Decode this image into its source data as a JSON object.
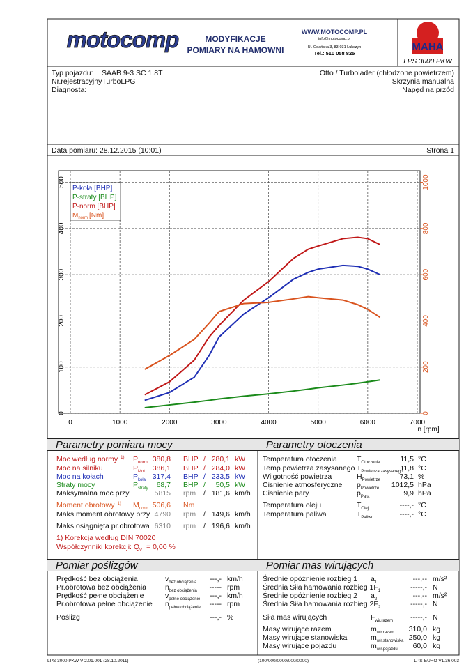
{
  "header": {
    "logo": "motocomp",
    "title_1": "MODYFIKACJE",
    "title_2": "POMIARY NA HAMOWNI",
    "web": "WWW.MOTOCOMP.PL",
    "email": "info@motocomp.pl",
    "address": "Ul. Gdańska 3, 83-031 Łukczyn",
    "phone": "Tel.: 510 058 825",
    "maha": "MAHA",
    "device": "LPS 3000 PKW"
  },
  "vehicle": {
    "type_label": "Typ pojazdu:",
    "type": "SAAB 9-3 SC 1.8T",
    "engine": "Otto / Turbolader (chłodzone powietrzem)",
    "reg": "Nr.rejestracyjnyTurboLPG",
    "gearbox": "Skrzynia manualna",
    "diag": "Diagnosta:",
    "drive": "Napęd na przód",
    "date": "Data pomiaru: 28.12.2015 (10:01)",
    "page": "Strona 1"
  },
  "chart_data": {
    "type": "line",
    "x_label": "n [rpm]",
    "x": [
      1500,
      2000,
      2500,
      2800,
      3000,
      3500,
      4000,
      4500,
      4800,
      5000,
      5500,
      5800,
      6000,
      6250
    ],
    "xlim": [
      0,
      7000
    ],
    "xticks": [
      0,
      1000,
      2000,
      3000,
      4000,
      5000,
      6000,
      7000
    ],
    "ylim": [
      0,
      525
    ],
    "yticks": [
      0,
      100,
      200,
      300,
      400,
      500
    ],
    "y2lim": [
      0,
      1050
    ],
    "y2ticks": [
      0,
      200,
      400,
      600,
      800,
      1000
    ],
    "grid": true,
    "legend": "top-left",
    "series": [
      {
        "name": "P-koła [BHP]",
        "color": "#1f2fb5",
        "values": [
          28,
          45,
          78,
          125,
          165,
          215,
          250,
          290,
          305,
          312,
          320,
          318,
          312,
          300
        ]
      },
      {
        "name": "P-straty [BHP]",
        "color": "#1a8a1a",
        "values": [
          12,
          18,
          24,
          28,
          31,
          37,
          42,
          48,
          52,
          55,
          61,
          65,
          68,
          72
        ]
      },
      {
        "name": "P-norm [BHP]",
        "color": "#c01818",
        "values": [
          40,
          68,
          115,
          165,
          190,
          245,
          285,
          335,
          355,
          362,
          378,
          381,
          378,
          365
        ]
      },
      {
        "name": "M",
        "name_sub": "norm",
        "unit": "[Nm]",
        "color": "#d9531e",
        "axis": "y2",
        "values": [
          190,
          250,
          320,
          390,
          440,
          475,
          480,
          495,
          505,
          500,
          490,
          470,
          450,
          415
        ]
      }
    ]
  },
  "power": {
    "title": "Parametry pomiaru mocy",
    "rows": [
      {
        "label": "Moc według normy",
        "note": "1)",
        "sym": "P",
        "sub": "norm",
        "v1": "380,8",
        "u1": "BHP",
        "sep": "/",
        "v2": "280,1",
        "u2": "kW"
      },
      {
        "label": "Moc na silniku",
        "sym": "P",
        "sub": "Mot",
        "v1": "386,1",
        "u1": "BHP",
        "sep": "/",
        "v2": "284,0",
        "u2": "kW"
      },
      {
        "label": "Moc na kołach",
        "sym": "P",
        "sub": "koła",
        "v1": "317,4",
        "u1": "BHP",
        "sep": "/",
        "v2": "233,5",
        "u2": "kW"
      },
      {
        "label": "Straty mocy",
        "sym": "P",
        "sub": "straty",
        "v1": "68,7",
        "u1": "BHP",
        "sep": "/",
        "v2": "50,5",
        "u2": "kW"
      },
      {
        "label": "Maksymalna moc przy",
        "v1": "5815",
        "u1": "rpm",
        "sep": "/",
        "v2": "181,6",
        "u2": "km/h"
      },
      {
        "label": "Moment obrotowy",
        "note": "1)",
        "sym": "M",
        "sub": "norm",
        "v1": "506,6",
        "u1": "Nm"
      },
      {
        "label": "Maks.moment obrotowy przy",
        "v1": "4790",
        "u1": "rpm",
        "sep": "/",
        "v2": "149,6",
        "u2": "km/h"
      },
      {
        "label": "Maks.osiągnięta pr.obrotowa",
        "v1": "6310",
        "u1": "rpm",
        "sep": "/",
        "v2": "196,6",
        "u2": "km/h"
      },
      {
        "label": "1) Korekcja według DIN 70020"
      },
      {
        "label": "Współczynniki korekcji: Q",
        "label_sub": "V",
        "tail": "= 0,00 %"
      }
    ]
  },
  "environment": {
    "title": "Parametry otoczenia",
    "rows": [
      {
        "label": "Temperatura otoczenia",
        "sym": "T",
        "sub": "Otoczenie",
        "val": "11,5",
        "unit": "°C"
      },
      {
        "label": "Temp.powietrza zasysanego",
        "sym": "T",
        "sub": "Powietrza zasysanego",
        "val": "11,8",
        "unit": "°C"
      },
      {
        "label": "Wilgotność powietrza",
        "sym": "H",
        "sub": "Powietrze",
        "val": "73,1",
        "unit": "%"
      },
      {
        "label": "Cisnienie atmosferyczne",
        "sym": "p",
        "sub": "Powietrze",
        "val": "1012,5",
        "unit": "hPa"
      },
      {
        "label": "Cisnienie pary",
        "sym": "p",
        "sub": "Para",
        "val": "9,9",
        "unit": "hPa"
      },
      {
        "label": "Temperatura oleju",
        "sym": "T",
        "sub": "Olej",
        "val": "----,-",
        "unit": "°C"
      },
      {
        "label": "Temperatura paliwa",
        "sym": "T",
        "sub": "Paliwo",
        "val": "----,-",
        "unit": "°C"
      }
    ]
  },
  "slip": {
    "title": "Pomiar poślizgów",
    "rows": [
      {
        "label": "Prędkość bez obciążenia",
        "sym": "v",
        "sub": "bez obciążenia",
        "val": "---,-",
        "unit": "km/h"
      },
      {
        "label": "Pr.obrotowa bez obciążenia",
        "sym": "n",
        "sub": "bez obciążenia",
        "val": "-----",
        "unit": "rpm"
      },
      {
        "label": "Prędkość pełne obciążenie",
        "sym": "v",
        "sub": "pełne obciążenie",
        "val": "---,-",
        "unit": "km/h"
      },
      {
        "label": "Pr.obrotowa pełne obciążenie",
        "sym": "n",
        "sub": "pełne obciążenie",
        "val": "-----",
        "unit": "rpm"
      },
      {
        "label": "Poślizg",
        "val": "---,-",
        "unit": "%"
      }
    ]
  },
  "masses": {
    "title": "Pomiar mas wirujących",
    "rows": [
      {
        "label": "Średnie opóżnienie rozbieg 1",
        "sym": "a",
        "sub": "1",
        "val": "---,--",
        "unit": "m/s²"
      },
      {
        "label": "Średnia Siła hamowania rozbieg 1F",
        "label_sub": "1",
        "val": "-----,-",
        "unit": "N"
      },
      {
        "label": "Średnie opóżnienie rozbieg 2",
        "sym": "a",
        "sub": "2",
        "val": "---,--",
        "unit": "m/s²"
      },
      {
        "label": "Średnia Siła hamowania rozbieg 2F",
        "label_sub": "2",
        "val": "-----,-",
        "unit": "N"
      },
      {
        "label": "Siła mas wirujących",
        "sym": "F",
        "sub": "wir.razem",
        "val": "-----,-",
        "unit": "N"
      },
      {
        "label": "Masy wirujące razem",
        "sym": "m",
        "sub": "wir.razem",
        "val": "310,0",
        "unit": "kg"
      },
      {
        "label": "Masy wirujące stanowiska",
        "sym": "m",
        "sub": "wir.stanowiska",
        "val": "250,0",
        "unit": "kg"
      },
      {
        "label": "Masy wirujące pojazdu",
        "sym": "m",
        "sub": "wir.pojazdu",
        "val": "60,0",
        "unit": "kg"
      }
    ]
  },
  "footer": {
    "left": "LPS 3000 PKW V 2.01.001 (28.10.2011)",
    "center": "(100/000/0000/000/0000)",
    "right": "LPS-EURO V1.36.003"
  }
}
